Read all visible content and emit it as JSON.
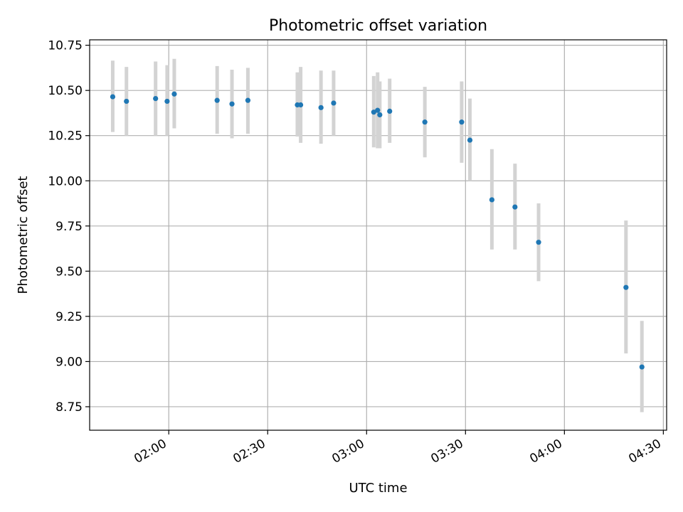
{
  "chart_data": {
    "type": "scatter",
    "title": "Photometric offset variation",
    "xlabel": "UTC time",
    "ylabel": "Photometric offset",
    "grid": true,
    "x_axis": {
      "kind": "time",
      "lim": [
        "01:36",
        "04:31"
      ],
      "ticks": [
        "02:00",
        "02:30",
        "03:00",
        "03:30",
        "04:00",
        "04:30"
      ]
    },
    "y_axis": {
      "lim": [
        8.62,
        10.78
      ],
      "ticks": [
        "8.75",
        "9.00",
        "9.25",
        "9.50",
        "9.75",
        "10.00",
        "10.25",
        "10.50",
        "10.75"
      ]
    },
    "colors": {
      "point": "#1f77b4",
      "errorbar": "#d3d3d3",
      "grid": "#b0b0b0"
    },
    "series": [
      {
        "points": [
          {
            "x": "01:43:00",
            "y": 10.465,
            "lo": 10.27,
            "hi": 10.665
          },
          {
            "x": "01:47:10",
            "y": 10.44,
            "lo": 10.25,
            "hi": 10.63
          },
          {
            "x": "01:56:00",
            "y": 10.455,
            "lo": 10.25,
            "hi": 10.66
          },
          {
            "x": "01:59:30",
            "y": 10.44,
            "lo": 10.25,
            "hi": 10.64
          },
          {
            "x": "02:01:40",
            "y": 10.48,
            "lo": 10.29,
            "hi": 10.675
          },
          {
            "x": "02:14:40",
            "y": 10.445,
            "lo": 10.26,
            "hi": 10.635
          },
          {
            "x": "02:19:10",
            "y": 10.425,
            "lo": 10.235,
            "hi": 10.615
          },
          {
            "x": "02:24:00",
            "y": 10.445,
            "lo": 10.26,
            "hi": 10.625
          },
          {
            "x": "02:39:00",
            "y": 10.42,
            "lo": 10.245,
            "hi": 10.6
          },
          {
            "x": "02:40:00",
            "y": 10.42,
            "lo": 10.21,
            "hi": 10.63
          },
          {
            "x": "02:46:10",
            "y": 10.405,
            "lo": 10.205,
            "hi": 10.61
          },
          {
            "x": "02:50:00",
            "y": 10.43,
            "lo": 10.25,
            "hi": 10.61
          },
          {
            "x": "03:02:10",
            "y": 10.38,
            "lo": 10.185,
            "hi": 10.58
          },
          {
            "x": "03:03:20",
            "y": 10.39,
            "lo": 10.18,
            "hi": 10.6
          },
          {
            "x": "03:04:00",
            "y": 10.365,
            "lo": 10.18,
            "hi": 10.55
          },
          {
            "x": "03:07:00",
            "y": 10.385,
            "lo": 10.21,
            "hi": 10.565
          },
          {
            "x": "03:17:40",
            "y": 10.325,
            "lo": 10.13,
            "hi": 10.52
          },
          {
            "x": "03:28:50",
            "y": 10.325,
            "lo": 10.1,
            "hi": 10.55
          },
          {
            "x": "03:31:20",
            "y": 10.225,
            "lo": 10.0,
            "hi": 10.455
          },
          {
            "x": "03:38:00",
            "y": 9.895,
            "lo": 9.62,
            "hi": 10.175
          },
          {
            "x": "03:45:00",
            "y": 9.855,
            "lo": 9.62,
            "hi": 10.095
          },
          {
            "x": "03:52:10",
            "y": 9.66,
            "lo": 9.445,
            "hi": 9.875
          },
          {
            "x": "04:18:40",
            "y": 9.41,
            "lo": 9.045,
            "hi": 9.78
          },
          {
            "x": "04:23:30",
            "y": 8.97,
            "lo": 8.72,
            "hi": 9.225
          }
        ]
      }
    ]
  }
}
